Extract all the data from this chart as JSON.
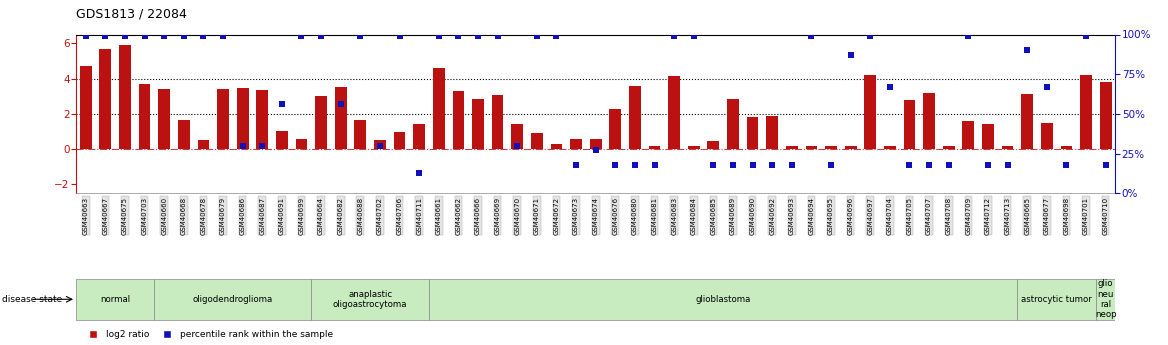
{
  "title": "GDS1813 / 22084",
  "samples": [
    "GSM40663",
    "GSM40667",
    "GSM40675",
    "GSM40703",
    "GSM40660",
    "GSM40668",
    "GSM40678",
    "GSM40679",
    "GSM40686",
    "GSM40687",
    "GSM40691",
    "GSM40699",
    "GSM40664",
    "GSM40682",
    "GSM40688",
    "GSM40702",
    "GSM40706",
    "GSM40711",
    "GSM40661",
    "GSM40662",
    "GSM40666",
    "GSM40669",
    "GSM40670",
    "GSM40671",
    "GSM40672",
    "GSM40673",
    "GSM40674",
    "GSM40676",
    "GSM40680",
    "GSM40681",
    "GSM40683",
    "GSM40684",
    "GSM40685",
    "GSM40689",
    "GSM40690",
    "GSM40692",
    "GSM40693",
    "GSM40694",
    "GSM40695",
    "GSM40696",
    "GSM40697",
    "GSM40704",
    "GSM40705",
    "GSM40707",
    "GSM40708",
    "GSM40709",
    "GSM40712",
    "GSM40713",
    "GSM40665",
    "GSM40677",
    "GSM40698",
    "GSM40701",
    "GSM40710"
  ],
  "log2_ratio": [
    4.7,
    5.7,
    5.9,
    3.7,
    3.4,
    1.65,
    0.5,
    3.4,
    3.45,
    3.35,
    1.0,
    0.6,
    3.0,
    3.5,
    1.65,
    0.5,
    0.95,
    1.45,
    4.6,
    3.3,
    2.85,
    3.05,
    1.45,
    0.9,
    0.3,
    0.6,
    0.55,
    2.3,
    3.6,
    0.2,
    4.15,
    0.2,
    0.45,
    2.85,
    1.8,
    1.85,
    0.2,
    0.2,
    0.2,
    0.2,
    4.2,
    0.2,
    2.8,
    3.2,
    0.2,
    1.6,
    1.45,
    0.2,
    3.1,
    1.5,
    0.15,
    4.2,
    3.8
  ],
  "percentile": [
    99,
    99,
    99,
    99,
    99,
    99,
    99,
    99,
    30,
    30,
    56,
    99,
    99,
    56,
    99,
    30,
    99,
    13,
    99,
    99,
    99,
    99,
    30,
    99,
    99,
    18,
    27,
    18,
    18,
    18,
    99,
    99,
    18,
    18,
    18,
    18,
    18,
    99,
    18,
    87,
    99,
    67,
    18,
    18,
    18,
    99,
    18,
    18,
    90,
    67,
    18,
    99,
    18
  ],
  "disease_groups": [
    {
      "label": "normal",
      "start": 0,
      "end": 4
    },
    {
      "label": "oligodendroglioma",
      "start": 4,
      "end": 12
    },
    {
      "label": "anaplastic\noligoastrocytoma",
      "start": 12,
      "end": 18
    },
    {
      "label": "glioblastoma",
      "start": 18,
      "end": 48
    },
    {
      "label": "astrocytic tumor",
      "start": 48,
      "end": 52
    },
    {
      "label": "glio\nneu\nral\nneop",
      "start": 52,
      "end": 53
    }
  ],
  "ylim_left": [
    -2.5,
    6.5
  ],
  "ylim_right": [
    0,
    100
  ],
  "yticks_left": [
    -2,
    0,
    2,
    4,
    6
  ],
  "yticks_right": [
    0,
    25,
    50,
    75,
    100
  ],
  "bar_color": "#bb1111",
  "dot_color": "#1111bb",
  "hline_dotted": [
    4.0,
    2.0
  ],
  "hline_zero": 0.0,
  "group_color_light": "#d8f0d0",
  "group_color_dark": "#b8e8a8"
}
